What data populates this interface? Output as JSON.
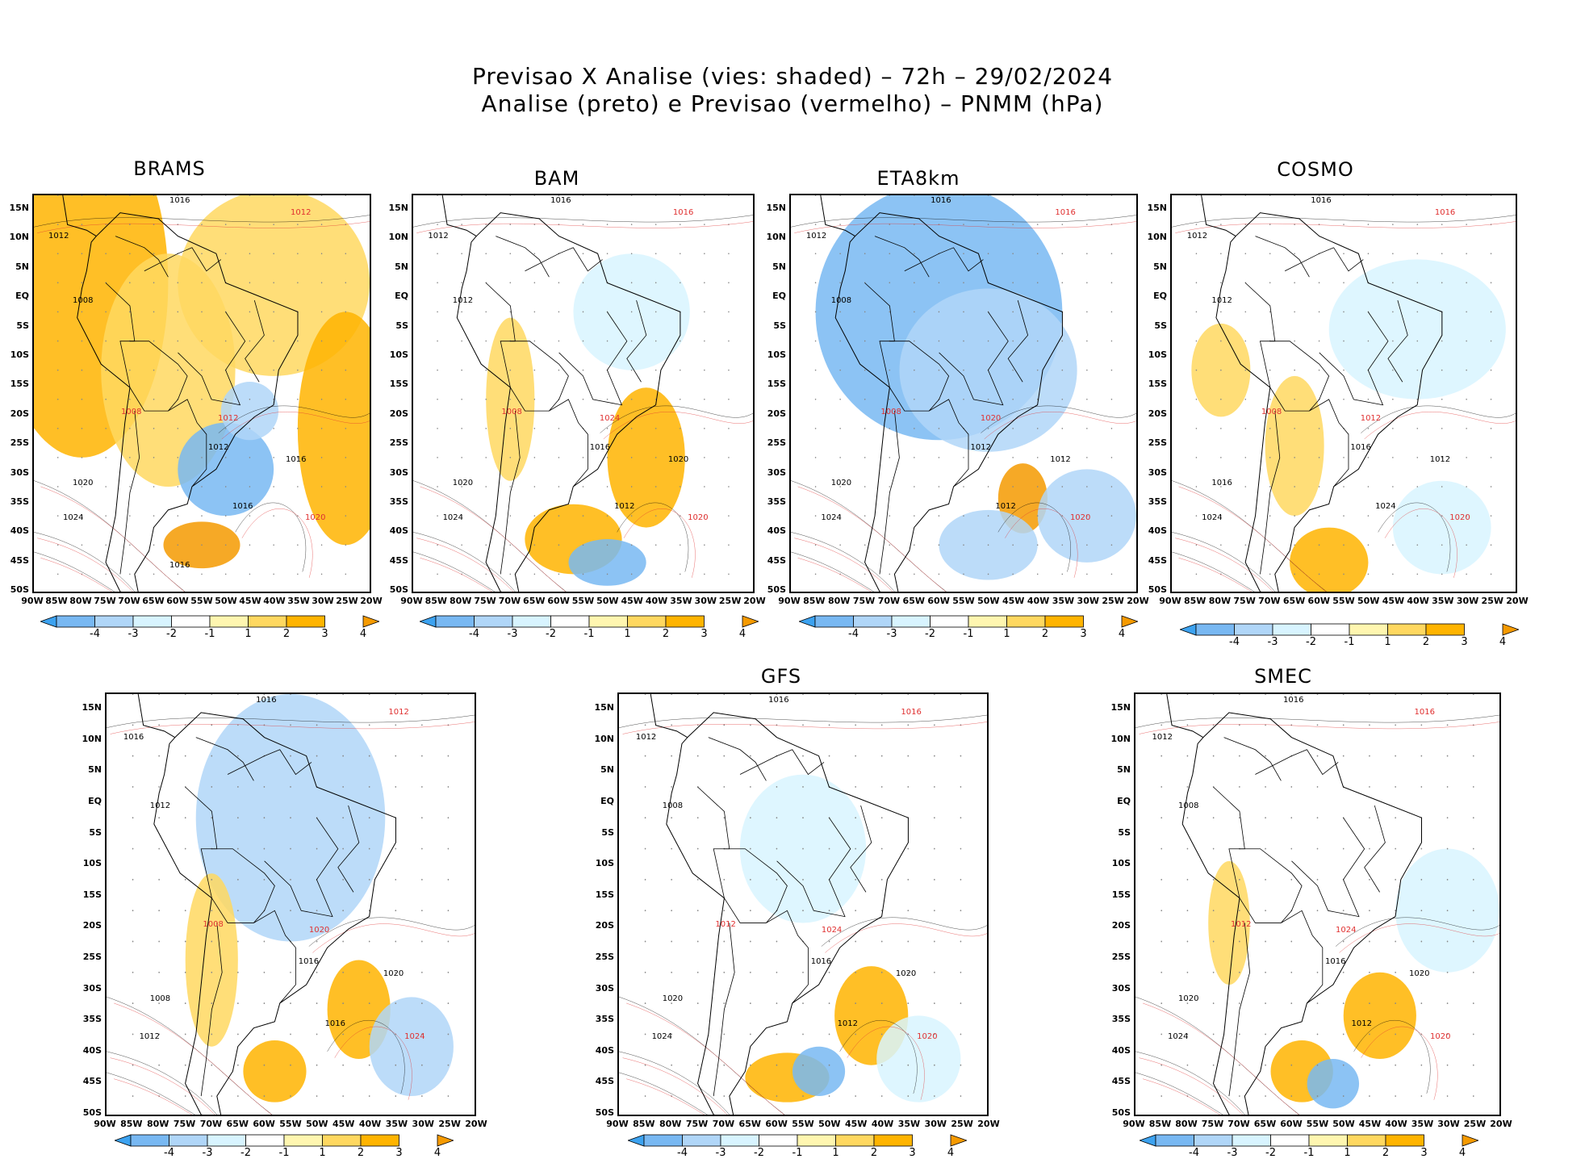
{
  "figure": {
    "title_line1": "Previsao X Analise (vies: shaded) – 72h – 29/02/2024",
    "title_line2": "Analise (preto) e Previsao (vermelho) – PNMM (hPa)"
  },
  "axes": {
    "lat_labels": [
      "15N",
      "10N",
      "5N",
      "EQ",
      "5S",
      "10S",
      "15S",
      "20S",
      "25S",
      "30S",
      "35S",
      "40S",
      "45S",
      "50S"
    ],
    "lon_labels": [
      "90W",
      "85W",
      "80W",
      "75W",
      "70W",
      "65W",
      "60W",
      "55W",
      "50W",
      "45W",
      "40W",
      "35W",
      "30W",
      "25W",
      "20W"
    ]
  },
  "colorbar": {
    "labels": [
      "-4",
      "-3",
      "-2",
      "-1",
      "1",
      "2",
      "3",
      "4"
    ],
    "colors": [
      "#3ca2f0",
      "#78b8f2",
      "#b0d6f8",
      "#d8f4ff",
      "#ffffff",
      "#fff6b0",
      "#ffd860",
      "#ffb400",
      "#f59a00"
    ]
  },
  "colors": {
    "analysis": "#000000",
    "forecast": "#e03030",
    "coast": "#000000"
  },
  "panels": [
    {
      "model": "BRAMS",
      "isobars": [
        "1016",
        "1012",
        "1012",
        "1008",
        "1008",
        "1012",
        "1016",
        "1020",
        "1024",
        "1016",
        "1012",
        "1020",
        "1016"
      ]
    },
    {
      "model": "BAM",
      "isobars": [
        "1016",
        "1016",
        "1012",
        "1012",
        "1008",
        "1016",
        "1020",
        "1020",
        "1024",
        "1012",
        "1024",
        "1020"
      ]
    },
    {
      "model": "ETA8km",
      "isobars": [
        "1016",
        "1016",
        "1012",
        "1008",
        "1008",
        "1012",
        "1012",
        "1020",
        "1024",
        "1012",
        "1020",
        "1020"
      ]
    },
    {
      "model": "COSMO",
      "isobars": [
        "1016",
        "1016",
        "1012",
        "1012",
        "1008",
        "1016",
        "1012",
        "1020",
        "1024",
        "1024",
        "1012",
        "1016"
      ]
    },
    {
      "model": "",
      "isobars": [
        "1016",
        "1012",
        "1016",
        "1012",
        "1008",
        "1016",
        "1020",
        "1024",
        "1012",
        "1016",
        "1020",
        "1008"
      ]
    },
    {
      "model": "GFS",
      "isobars": [
        "1016",
        "1016",
        "1012",
        "1008",
        "1012",
        "1016",
        "1020",
        "1020",
        "1024",
        "1012",
        "1024",
        "1020"
      ]
    },
    {
      "model": "SMEC",
      "isobars": [
        "1016",
        "1016",
        "1012",
        "1008",
        "1012",
        "1016",
        "1020",
        "1020",
        "1024",
        "1012",
        "1024",
        "1020"
      ]
    }
  ]
}
